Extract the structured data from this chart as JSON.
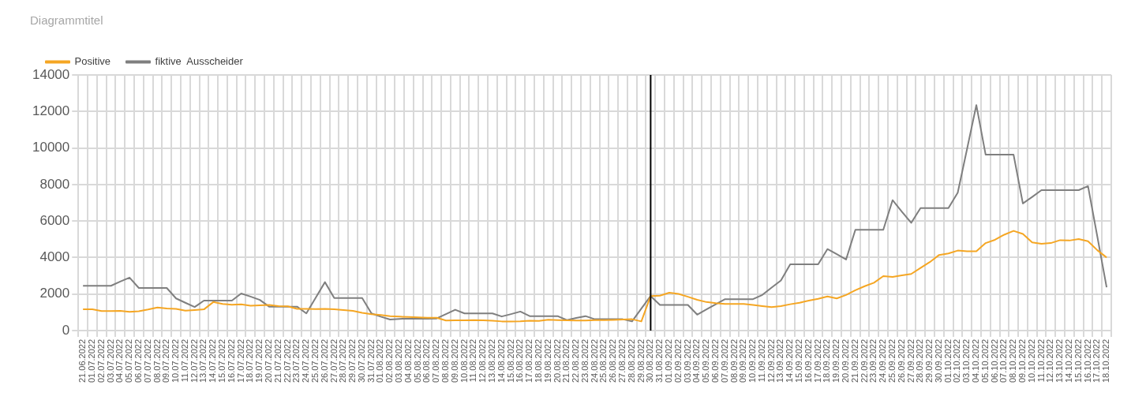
{
  "chart_data": {
    "type": "line",
    "title": "Diagrammtitel",
    "categories": [
      "21.06.2022",
      "01.07.2022",
      "02.07.2022",
      "03.07.2022",
      "04.07.2022",
      "05.07.2022",
      "06.07.2022",
      "07.07.2022",
      "08.07.2022",
      "09.07.2022",
      "10.07.2022",
      "11.07.2022",
      "12.07.2022",
      "13.07.2022",
      "14.07.2022",
      "15.07.2022",
      "16.07.2022",
      "17.07.2022",
      "18.07.2022",
      "19.07.2022",
      "20.07.2022",
      "21.07.2022",
      "22.07.2022",
      "23.07.2022",
      "24.07.2022",
      "25.07.2022",
      "26.07.2022",
      "27.07.2022",
      "28.07.2022",
      "29.07.2022",
      "30.07.2022",
      "31.07.2022",
      "01.08.2022",
      "02.08.2022",
      "03.08.2022",
      "04.08.2022",
      "05.08.2022",
      "06.08.2022",
      "07.08.2022",
      "08.08.2022",
      "09.08.2022",
      "10.08.2022",
      "11.08.2022",
      "12.08.2022",
      "13.08.2022",
      "14.08.2022",
      "15.08.2022",
      "16.08.2022",
      "17.08.2022",
      "18.08.2022",
      "19.08.2022",
      "20.08.2022",
      "21.08.2022",
      "22.08.2022",
      "23.08.2022",
      "24.08.2022",
      "25.08.2022",
      "26.08.2022",
      "27.08.2022",
      "28.08.2022",
      "29.08.2022",
      "30.08.2022",
      "31.08.2022",
      "01.09.2022",
      "02.09.2022",
      "03.09.2022",
      "04.09.2022",
      "05.09.2022",
      "06.09.2022",
      "07.09.2022",
      "08.09.2022",
      "09.09.2022",
      "10.09.2022",
      "11.09.2022",
      "12.09.2022",
      "13.09.2022",
      "14.09.2022",
      "15.09.2022",
      "16.09.2022",
      "17.09.2022",
      "18.09.2022",
      "19.09.2022",
      "20.09.2022",
      "21.09.2022",
      "22.09.2022",
      "23.09.2022",
      "24.09.2022",
      "25.09.2022",
      "26.09.2022",
      "27.09.2022",
      "28.09.2022",
      "29.09.2022",
      "30.09.2022",
      "01.10.2022",
      "02.10.2022",
      "03.10.2022",
      "04.10.2022",
      "05.10.2022",
      "06.10.2022",
      "07.10.2022",
      "08.10.2022",
      "09.10.2022",
      "10.10.2022",
      "11.10.2022",
      "12.10.2022",
      "13.10.2022",
      "14.10.2022",
      "15.10.2022",
      "16.10.2022",
      "17.10.2022",
      "18.10.2022"
    ],
    "series": [
      {
        "name": "Positive",
        "color": "#f5a623",
        "values": [
          1160,
          1160,
          1070,
          1070,
          1080,
          1020,
          1060,
          1150,
          1260,
          1210,
          1190,
          1090,
          1120,
          1160,
          1560,
          1460,
          1410,
          1430,
          1360,
          1380,
          1400,
          1340,
          1330,
          1190,
          1190,
          1180,
          1190,
          1160,
          1120,
          1080,
          970,
          890,
          850,
          790,
          760,
          740,
          720,
          700,
          700,
          550,
          560,
          560,
          570,
          560,
          540,
          500,
          500,
          510,
          540,
          530,
          590,
          570,
          560,
          550,
          550,
          570,
          570,
          580,
          600,
          620,
          500,
          1890,
          1910,
          2070,
          2010,
          1850,
          1680,
          1560,
          1500,
          1460,
          1460,
          1460,
          1400,
          1340,
          1280,
          1340,
          1440,
          1520,
          1640,
          1740,
          1870,
          1760,
          1950,
          2210,
          2430,
          2620,
          2980,
          2940,
          3020,
          3100,
          3430,
          3750,
          4140,
          4220,
          4380,
          4340,
          4340,
          4790,
          4970,
          5250,
          5460,
          5290,
          4830,
          4750,
          4790,
          4950,
          4930,
          5010,
          4890,
          4400,
          4000
        ]
      },
      {
        "name": "fiktive  Ausscheider",
        "color": "#7f7f7f",
        "values": [
          2450,
          2450,
          2450,
          2450,
          2680,
          2900,
          2330,
          2330,
          2330,
          2330,
          1760,
          1520,
          1290,
          1640,
          1640,
          1640,
          1640,
          2030,
          1860,
          1680,
          1310,
          1310,
          1310,
          1310,
          940,
          1790,
          2650,
          1780,
          1780,
          1780,
          1780,
          940,
          760,
          600,
          640,
          650,
          650,
          650,
          660,
          900,
          1140,
          940,
          940,
          940,
          940,
          770,
          900,
          1040,
          790,
          790,
          790,
          790,
          570,
          690,
          790,
          620,
          620,
          620,
          620,
          500,
          1200,
          1890,
          1400,
          1400,
          1400,
          1400,
          870,
          1160,
          1440,
          1720,
          1720,
          1720,
          1720,
          1950,
          2350,
          2740,
          3630,
          3630,
          3630,
          3630,
          4460,
          4180,
          3890,
          5520,
          5520,
          5520,
          5520,
          7140,
          6510,
          5900,
          6710,
          6710,
          6710,
          6710,
          7550,
          9940,
          12350,
          9630,
          9630,
          9630,
          9630,
          6960,
          7320,
          7690,
          7690,
          7690,
          7690,
          7690,
          7910,
          5150,
          2370
        ]
      }
    ],
    "ylim": [
      0,
      14000
    ],
    "yticks": [
      0,
      2000,
      4000,
      6000,
      8000,
      10000,
      12000,
      14000
    ],
    "grid": true,
    "legend": "top left",
    "marker": "none",
    "line_style": "solid",
    "ref_lines": [
      {
        "axis": "x",
        "value": "30.08.2022",
        "color": "#000000"
      }
    ]
  }
}
